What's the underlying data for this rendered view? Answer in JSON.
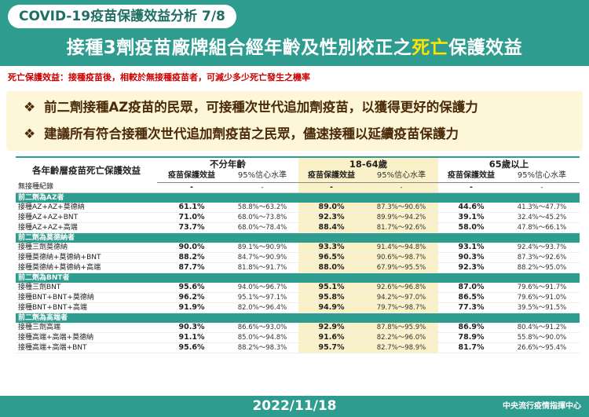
{
  "header": {
    "tag": "COVID-19疫苗保護效益分析 7/8",
    "title_part1": "接種3劑疫苗廠牌組合經年齡及性別校正之",
    "title_highlight": "死亡",
    "title_part2": "保護效益"
  },
  "definition": "死亡保護效益：接種疫苗後，相較於無接種疫苗者，可減少多少死亡發生之機率",
  "bullet_icon": "diamond-cluster-icon",
  "points": [
    "前二劑接種AZ疫苗的民眾，可接種次世代追加劑疫苗，以獲得更好的保護力",
    "建議所有符合接種次世代追加劑疫苗之民眾，儘速接種以延續疫苗保護力"
  ],
  "table": {
    "corner_label": "各年齡層疫苗死亡保護效益",
    "age_groups": [
      "不分年齡",
      "18-64歲",
      "65歲以上"
    ],
    "sub_headers": [
      "疫苗保護效益",
      "95%信心水準"
    ],
    "no_vaccine": {
      "label": "無接種紀錄",
      "cells": [
        "-",
        "-",
        "-",
        "-",
        "-",
        "-"
      ]
    },
    "groups": [
      {
        "name": "前二劑為AZ者",
        "rows": [
          {
            "label": "接種AZ+AZ+莫德納",
            "cells": [
              "61.1%",
              "58.8%～63.2%",
              "89.0%",
              "87.3%～90.6%",
              "44.6%",
              "41.3%～47.7%"
            ]
          },
          {
            "label": "接種AZ+AZ+BNT",
            "cells": [
              "71.0%",
              "68.0%～73.8%",
              "92.3%",
              "89.9%～94.2%",
              "39.1%",
              "32.4%～45.2%"
            ]
          },
          {
            "label": "接種AZ+AZ+高端",
            "cells": [
              "73.7%",
              "68.0%～78.4%",
              "88.4%",
              "81.7%～92.6%",
              "58.0%",
              "47.8%～66.1%"
            ]
          }
        ]
      },
      {
        "name": "前二劑為莫德納者",
        "rows": [
          {
            "label": "接種三劑莫德納",
            "cells": [
              "90.0%",
              "89.1%～90.9%",
              "93.3%",
              "91.4%～94.8%",
              "93.1%",
              "92.4%～93.7%"
            ]
          },
          {
            "label": "接種莫德納+莫德納+BNT",
            "cells": [
              "88.2%",
              "84.7%～90.9%",
              "96.5%",
              "90.6%～98.7%",
              "90.3%",
              "87.3%～92.6%"
            ]
          },
          {
            "label": "接種莫德納+莫德納+高端",
            "cells": [
              "87.7%",
              "81.8%～91.7%",
              "88.0%",
              "67.9%～95.5%",
              "92.3%",
              "88.2%～95.0%"
            ]
          }
        ]
      },
      {
        "name": "前二劑為BNT者",
        "rows": [
          {
            "label": "接種三劑BNT",
            "cells": [
              "95.6%",
              "94.0%～96.7%",
              "95.1%",
              "92.6%～96.8%",
              "87.0%",
              "79.6%～91.7%"
            ]
          },
          {
            "label": "接種BNT+BNT+莫德納",
            "cells": [
              "96.2%",
              "95.1%～97.1%",
              "95.8%",
              "94.2%～97.0%",
              "86.5%",
              "79.6%～91.0%"
            ]
          },
          {
            "label": "接種BNT+BNT+高端",
            "cells": [
              "91.9%",
              "82.0%～96.4%",
              "94.9%",
              "79.7%～98.7%",
              "77.3%",
              "39.5%～91.5%"
            ]
          }
        ]
      },
      {
        "name": "前二劑為高端者",
        "rows": [
          {
            "label": "接種三劑高端",
            "cells": [
              "90.3%",
              "86.6%～93.0%",
              "92.9%",
              "87.8%～95.9%",
              "86.9%",
              "80.4%～91.2%"
            ]
          },
          {
            "label": "接種高端+高端+莫德納",
            "cells": [
              "91.1%",
              "85.0%～94.8%",
              "91.6%",
              "82.2%～96.0%",
              "78.9%",
              "55.8%～90.0%"
            ]
          },
          {
            "label": "接種高端+高端+BNT",
            "cells": [
              "95.6%",
              "88.2%～98.3%",
              "95.7%",
              "82.7%～98.9%",
              "81.7%",
              "26.6%～95.4%"
            ]
          }
        ]
      }
    ]
  },
  "footer": {
    "date": "2022/11/18",
    "org": "中央流行疫情指揮中心"
  },
  "colors": {
    "teal": "#2e9c8f",
    "highlight": "#ffe400",
    "definition_red": "#cc0000",
    "points_bg": "#fdf6d8",
    "middle_column_bg": "#fbf1c8"
  }
}
